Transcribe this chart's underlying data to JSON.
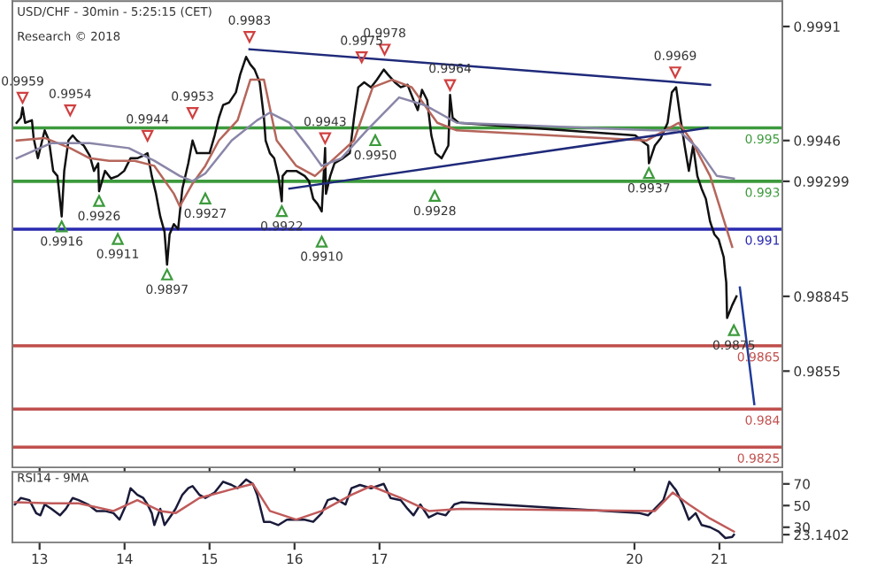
{
  "chart_data": [
    {
      "type": "line",
      "title": "USD/CHF - 30min - 5:25:15 (CET)",
      "subtitle": "Research © 2018",
      "xlim": [
        12.68,
        21.74
      ],
      "xticks": [
        13,
        14,
        15,
        16,
        17,
        20,
        21
      ],
      "ylim": [
        0.9817,
        1.0001
      ],
      "yticks": [
        0.9991,
        0.9946,
        {
          "value": 0.99299,
          "label": "0.99299"
        },
        {
          "value": 0.98845,
          "label": "0.98845"
        },
        0.9855
      ],
      "tick_labels": "y",
      "grid": false,
      "legend": false,
      "marker": "none",
      "line_style": "solid",
      "series": [
        {
          "color": "#111111",
          "x": [
            12.73,
            12.78,
            12.8,
            12.83,
            12.91,
            12.93,
            12.98,
            13.06,
            13.11,
            13.16,
            13.21,
            13.26,
            13.29,
            13.34,
            13.39,
            13.44,
            13.52,
            13.59,
            13.64,
            13.69,
            13.7,
            13.77,
            13.84,
            13.92,
            13.995,
            14.07,
            14.15,
            14.22,
            14.27,
            14.32,
            14.37,
            14.42,
            14.47,
            14.5,
            14.53,
            14.58,
            14.63,
            14.68,
            14.75,
            14.8,
            14.85,
            14.93,
            15.0,
            15.06,
            15.11,
            15.16,
            15.23,
            15.31,
            15.36,
            15.43,
            15.48,
            15.53,
            15.59,
            15.64,
            15.66,
            15.71,
            15.76,
            15.81,
            15.85,
            15.86,
            15.91,
            16.02,
            16.12,
            16.17,
            16.22,
            16.27,
            16.32,
            16.36,
            16.37,
            16.42,
            16.47,
            16.57,
            16.65,
            16.7,
            16.75,
            16.82,
            16.9,
            16.97,
            17.05,
            17.1,
            17.18,
            17.25,
            17.33,
            17.4,
            17.45,
            17.5,
            17.56,
            17.61,
            17.66,
            17.73,
            17.81,
            17.83,
            17.86,
            17.93,
            20.01,
            20.08,
            20.16,
            20.17,
            20.24,
            20.31,
            20.39,
            20.44,
            20.49,
            20.54,
            20.59,
            20.64,
            20.69,
            20.74,
            20.79,
            20.84,
            20.89,
            20.94,
            20.99,
            21.05,
            21.07,
            21.08,
            21.09,
            21.15,
            21.2
          ],
          "values": [
            0.9953,
            0.9955,
            0.9959,
            0.9953,
            0.9954,
            0.9947,
            0.9939,
            0.995,
            0.9946,
            0.9934,
            0.9932,
            0.9916,
            0.9934,
            0.9946,
            0.9948,
            0.9946,
            0.9944,
            0.994,
            0.9934,
            0.9937,
            0.9926,
            0.9934,
            0.9931,
            0.9932,
            0.9934,
            0.9939,
            0.9939,
            0.994,
            0.9941,
            0.9932,
            0.9925,
            0.9916,
            0.991,
            0.9897,
            0.9909,
            0.9913,
            0.9911,
            0.9927,
            0.9937,
            0.9946,
            0.9941,
            0.9941,
            0.9941,
            0.9948,
            0.9955,
            0.996,
            0.9961,
            0.9965,
            0.9972,
            0.9979,
            0.9976,
            0.9974,
            0.9969,
            0.9955,
            0.9946,
            0.9941,
            0.9939,
            0.9932,
            0.9922,
            0.9932,
            0.9934,
            0.9934,
            0.9932,
            0.993,
            0.9923,
            0.9921,
            0.9918,
            0.9943,
            0.9925,
            0.9932,
            0.9937,
            0.9939,
            0.9941,
            0.9955,
            0.9967,
            0.9969,
            0.9967,
            0.997,
            0.9974,
            0.9972,
            0.9969,
            0.9967,
            0.9968,
            0.9962,
            0.9958,
            0.9966,
            0.9962,
            0.9948,
            0.9941,
            0.9939,
            0.9944,
            0.9964,
            0.9955,
            0.9953,
            0.9948,
            0.9946,
            0.9944,
            0.9937,
            0.9944,
            0.9947,
            0.9953,
            0.9965,
            0.9967,
            0.9955,
            0.9944,
            0.9934,
            0.9944,
            0.9932,
            0.9927,
            0.9923,
            0.9914,
            0.9909,
            0.9907,
            0.99,
            0.9893,
            0.989,
            0.9876,
            0.9881,
            0.98845
          ]
        },
        {
          "color": "#b5655a",
          "x": [
            12.73,
            13.06,
            13.36,
            13.59,
            13.82,
            14.12,
            14.35,
            14.58,
            14.65,
            14.8,
            14.95,
            15.11,
            15.33,
            15.48,
            15.64,
            15.79,
            16.02,
            16.24,
            16.47,
            16.7,
            16.92,
            17.15,
            17.38,
            17.68,
            17.91,
            20.14,
            20.36,
            20.52,
            20.67,
            20.89,
            21.15
          ],
          "values": [
            0.9946,
            0.9947,
            0.9943,
            0.9939,
            0.9938,
            0.9938,
            0.9936,
            0.9925,
            0.992,
            0.9929,
            0.9936,
            0.9946,
            0.9954,
            0.997,
            0.997,
            0.9946,
            0.9936,
            0.9932,
            0.9939,
            0.9946,
            0.9967,
            0.997,
            0.9967,
            0.9953,
            0.995,
            0.9946,
            0.995,
            0.9953,
            0.9946,
            0.9932,
            0.9904
          ]
        },
        {
          "color": "#8a86a8",
          "x": [
            12.73,
            13.14,
            13.59,
            14.05,
            14.35,
            14.65,
            14.8,
            14.95,
            15.26,
            15.56,
            15.71,
            15.94,
            16.17,
            16.32,
            16.55,
            16.85,
            17.23,
            17.53,
            17.91,
            20.21,
            20.52,
            20.74,
            20.97,
            21.17
          ],
          "values": [
            0.9939,
            0.9945,
            0.9945,
            0.9943,
            0.9938,
            0.9932,
            0.993,
            0.9933,
            0.9946,
            0.9954,
            0.9957,
            0.9953,
            0.9943,
            0.9936,
            0.9939,
            0.995,
            0.9963,
            0.996,
            0.9953,
            0.995,
            0.995,
            0.9943,
            0.9932,
            0.9931
          ]
        },
        {
          "color": "#1f2a7a",
          "x": [
            15.47,
            20.89
          ],
          "values": [
            0.9982,
            0.9968
          ]
        },
        {
          "color": "#1f2a7a",
          "x": [
            15.94,
            20.86
          ],
          "values": [
            0.9927,
            0.9951
          ]
        },
        {
          "color": "#1f3a9a",
          "x": [
            21.24,
            21.41
          ],
          "values": [
            0.9888,
            0.9842
          ]
        }
      ],
      "ref_lines": [
        {
          "axis": "y",
          "value": 0.9951,
          "label": "0.995",
          "color": "#3c9a3c"
        },
        {
          "axis": "y",
          "value": 0.99299,
          "label": "0.993",
          "color": "#3c9a3c"
        },
        {
          "axis": "y",
          "value": 0.9911,
          "label": "0.991",
          "color": "#2a2ab0"
        },
        {
          "axis": "y",
          "value": 0.9865,
          "label": "0.9865",
          "color": "#c0504d"
        },
        {
          "axis": "y",
          "value": 0.984,
          "label": "0.984",
          "color": "#c0504d"
        },
        {
          "axis": "y",
          "value": 0.9825,
          "label": "0.9825",
          "color": "#c0504d"
        }
      ],
      "annotations": [
        {
          "text": "0.9959",
          "x": 12.8,
          "y": 0.9959
        },
        {
          "text": "0.9954",
          "x": 13.36,
          "y": 0.9954
        },
        {
          "text": "0.9944",
          "x": 14.27,
          "y": 0.9944
        },
        {
          "text": "0.9953",
          "x": 14.8,
          "y": 0.9953
        },
        {
          "text": "0.9983",
          "x": 15.47,
          "y": 0.9983
        },
        {
          "text": "0.9943",
          "x": 16.36,
          "y": 0.9943
        },
        {
          "text": "0.9975",
          "x": 16.79,
          "y": 0.9975
        },
        {
          "text": "0.9978",
          "x": 17.06,
          "y": 0.9978
        },
        {
          "text": "0.9964",
          "x": 17.83,
          "y": 0.9964
        },
        {
          "text": "0.9969",
          "x": 20.48,
          "y": 0.9969
        },
        {
          "text": "0.9916",
          "x": 13.26,
          "y": 0.9916
        },
        {
          "text": "0.9926",
          "x": 13.7,
          "y": 0.9926
        },
        {
          "text": "0.9911",
          "x": 13.92,
          "y": 0.9911
        },
        {
          "text": "0.9897",
          "x": 14.5,
          "y": 0.9897
        },
        {
          "text": "0.9927",
          "x": 14.95,
          "y": 0.9927
        },
        {
          "text": "0.9922",
          "x": 15.85,
          "y": 0.9922
        },
        {
          "text": "0.9910",
          "x": 16.32,
          "y": 0.991
        },
        {
          "text": "0.9950",
          "x": 16.95,
          "y": 0.995
        },
        {
          "text": "0.9928",
          "x": 17.65,
          "y": 0.9928
        },
        {
          "text": "0.9937",
          "x": 20.17,
          "y": 0.9937
        },
        {
          "text": "0.9875",
          "x": 21.17,
          "y": 0.9875
        }
      ]
    },
    {
      "type": "line",
      "title": "RSI14 - 9MA",
      "xlim": [
        12.68,
        21.74
      ],
      "xticks": [
        13,
        14,
        15,
        16,
        17,
        20,
        21
      ],
      "ylim": [
        16,
        81
      ],
      "yticks": [
        70,
        50,
        30,
        {
          "value": 23.1402,
          "label": "23.1402"
        }
      ],
      "grid": false,
      "legend": false,
      "marker": "none",
      "line_style": "solid",
      "series": [
        {
          "color": "#1a1a3a",
          "x": [
            12.71,
            12.78,
            12.88,
            12.96,
            13.01,
            13.06,
            13.14,
            13.24,
            13.31,
            13.39,
            13.46,
            13.57,
            13.67,
            13.77,
            13.87,
            13.94,
            14.02,
            14.07,
            14.15,
            14.22,
            14.27,
            14.32,
            14.35,
            14.42,
            14.47,
            14.55,
            14.6,
            14.68,
            14.75,
            14.8,
            14.88,
            14.95,
            15.06,
            15.16,
            15.26,
            15.33,
            15.43,
            15.51,
            15.56,
            15.64,
            15.71,
            15.81,
            15.91,
            16.02,
            16.12,
            16.22,
            16.32,
            16.39,
            16.47,
            16.6,
            16.67,
            16.77,
            16.9,
            17.05,
            17.13,
            17.25,
            17.33,
            17.4,
            17.48,
            17.58,
            17.68,
            17.78,
            17.88,
            17.96,
            20.06,
            20.16,
            20.24,
            20.34,
            20.41,
            20.49,
            20.57,
            20.64,
            20.72,
            20.79,
            20.89,
            20.99,
            21.07,
            21.15,
            21.17
          ],
          "values": [
            51,
            57,
            55,
            43,
            41,
            51,
            47,
            41,
            47,
            57,
            55,
            51,
            45,
            45,
            43,
            37,
            51,
            66,
            60,
            57,
            51,
            43,
            32,
            47,
            32,
            41,
            47,
            60,
            66,
            68,
            60,
            57,
            62,
            72,
            69,
            66,
            74,
            70,
            60,
            35,
            35,
            32,
            37,
            37,
            37,
            35,
            43,
            55,
            57,
            51,
            66,
            69,
            66,
            70,
            57,
            55,
            47,
            41,
            51,
            39,
            43,
            41,
            51,
            53,
            43,
            41,
            47,
            55,
            72,
            64,
            51,
            37,
            43,
            32,
            30,
            26,
            20,
            21,
            23
          ]
        },
        {
          "color": "#c05a5a",
          "x": [
            12.71,
            13.14,
            13.46,
            13.87,
            14.15,
            14.42,
            14.6,
            14.88,
            15.26,
            15.51,
            15.71,
            16.02,
            16.32,
            16.67,
            16.9,
            17.25,
            17.58,
            17.96,
            20.24,
            20.45,
            20.64,
            20.89,
            21.17
          ],
          "values": [
            53,
            52,
            52,
            45,
            55,
            45,
            43,
            57,
            65,
            70,
            45,
            37,
            45,
            60,
            68,
            57,
            45,
            47,
            45,
            62,
            51,
            38,
            26
          ]
        }
      ]
    }
  ]
}
